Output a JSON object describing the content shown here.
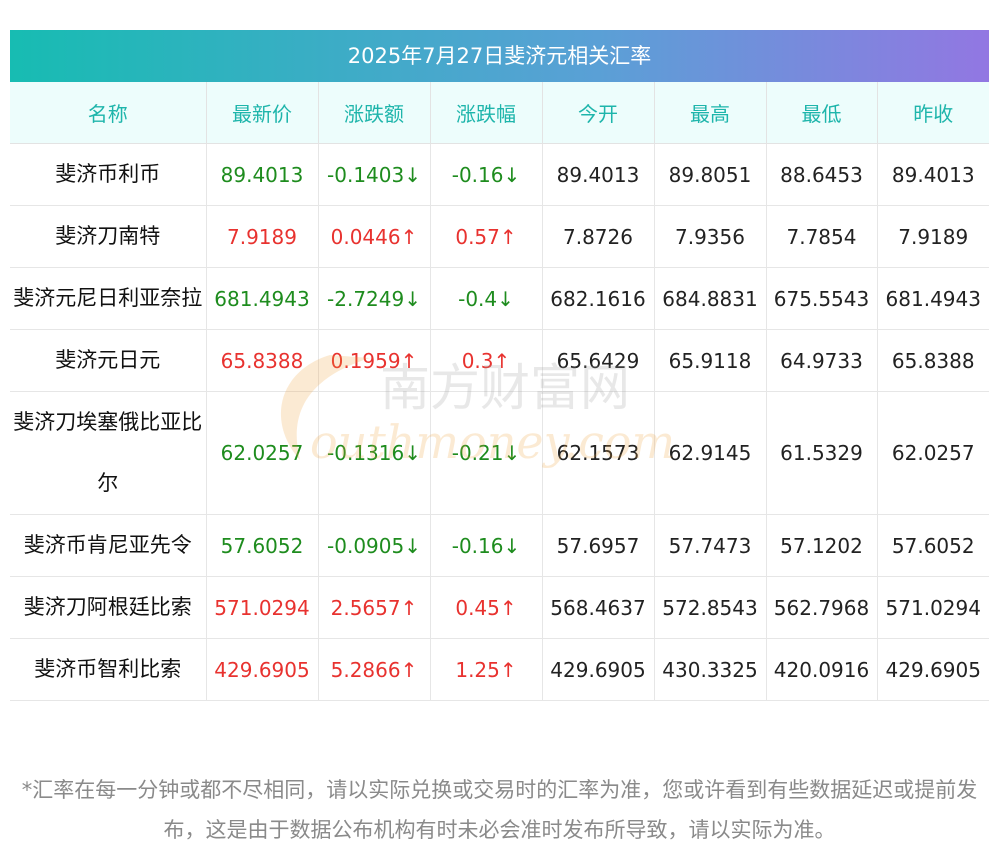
{
  "title": "2025年7月27日斐济元相关汇率",
  "headers": [
    "名称",
    "最新价",
    "涨跌额",
    "涨跌幅",
    "今开",
    "最高",
    "最低",
    "昨收"
  ],
  "rows": [
    {
      "name": "斐济币利币",
      "latest": "89.4013",
      "change": "-0.1403↓",
      "pct": "-0.16↓",
      "open": "89.4013",
      "high": "89.8051",
      "low": "88.6453",
      "prev": "89.4013",
      "dir": "down"
    },
    {
      "name": "斐济刀南特",
      "latest": "7.9189",
      "change": "0.0446↑",
      "pct": "0.57↑",
      "open": "7.8726",
      "high": "7.9356",
      "low": "7.7854",
      "prev": "7.9189",
      "dir": "up"
    },
    {
      "name": "斐济元尼日利亚奈拉",
      "latest": "681.4943",
      "change": "-2.7249↓",
      "pct": "-0.4↓",
      "open": "682.1616",
      "high": "684.8831",
      "low": "675.5543",
      "prev": "681.4943",
      "dir": "down"
    },
    {
      "name": "斐济元日元",
      "latest": "65.8388",
      "change": "0.1959↑",
      "pct": "0.3↑",
      "open": "65.6429",
      "high": "65.9118",
      "low": "64.9733",
      "prev": "65.8388",
      "dir": "up"
    },
    {
      "name": "斐济刀埃塞俄比亚比尔",
      "latest": "62.0257",
      "change": "-0.1316↓",
      "pct": "-0.21↓",
      "open": "62.1573",
      "high": "62.9145",
      "low": "61.5329",
      "prev": "62.0257",
      "dir": "down"
    },
    {
      "name": "斐济币肯尼亚先令",
      "latest": "57.6052",
      "change": "-0.0905↓",
      "pct": "-0.16↓",
      "open": "57.6957",
      "high": "57.7473",
      "low": "57.1202",
      "prev": "57.6052",
      "dir": "down"
    },
    {
      "name": "斐济刀阿根廷比索",
      "latest": "571.0294",
      "change": "2.5657↑",
      "pct": "0.45↑",
      "open": "568.4637",
      "high": "572.8543",
      "low": "562.7968",
      "prev": "571.0294",
      "dir": "up"
    },
    {
      "name": "斐济币智利比索",
      "latest": "429.6905",
      "change": "5.2866↑",
      "pct": "1.25↑",
      "open": "429.6905",
      "high": "430.3325",
      "low": "420.0916",
      "prev": "429.6905",
      "dir": "up"
    }
  ],
  "footnote": "*汇率在每一分钟或都不尽相同，请以实际兑换或交易时的汇率为准，您或许看到有些数据延迟或提前发布，这是由于数据公布机构有时未必会准时发布所导致，请以实际为准。",
  "watermark": {
    "cn": "南方财富网",
    "en": "outhmoney.com"
  },
  "colors": {
    "up": "#e8322f",
    "down": "#1e8c1e",
    "header_text": "#1eb5ab",
    "header_bg": "#edfdfc"
  }
}
